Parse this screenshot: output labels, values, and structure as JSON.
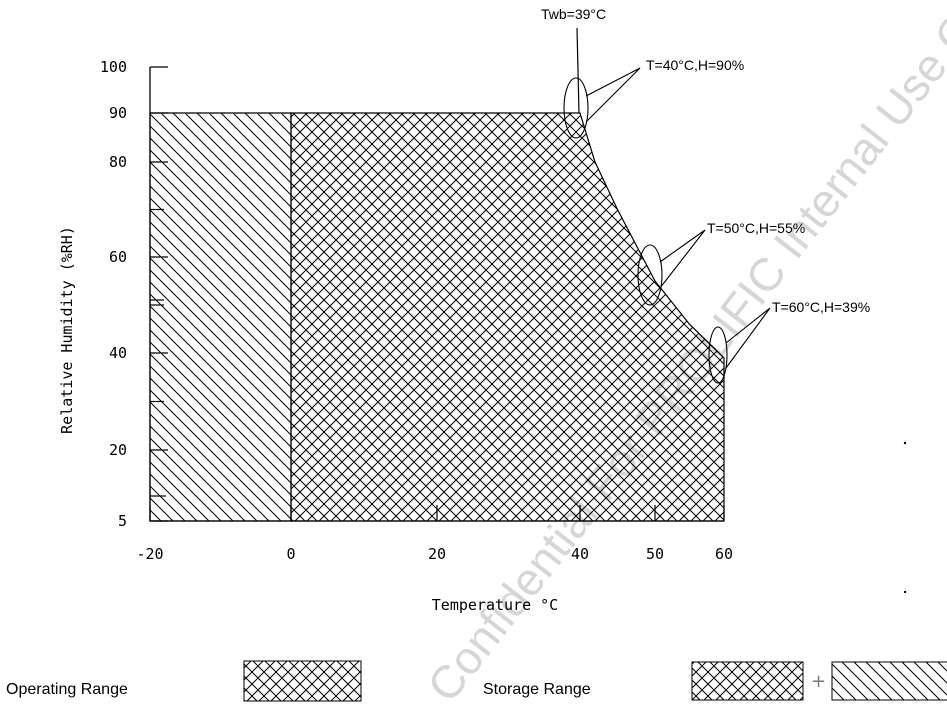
{
  "chart_data": {
    "type": "area",
    "xlabel": "Temperature °C",
    "ylabel": "Relative Humidity (%RH)",
    "xlim": [
      -20,
      60
    ],
    "ylim": [
      5,
      100
    ],
    "x_ticks": [
      -20,
      0,
      20,
      40,
      50,
      60
    ],
    "y_ticks": [
      5,
      20,
      40,
      60,
      80,
      90,
      100
    ],
    "series": [
      {
        "name": "Operating Range",
        "pattern": "crosshatch",
        "points": [
          [
            0,
            5
          ],
          [
            0,
            90
          ],
          [
            39,
            90
          ],
          [
            40,
            90
          ],
          [
            42,
            80
          ],
          [
            45,
            70
          ],
          [
            50,
            55
          ],
          [
            55,
            46
          ],
          [
            60,
            39
          ],
          [
            60,
            5
          ]
        ]
      },
      {
        "name": "Storage Range",
        "pattern": "diagonal",
        "points": [
          [
            -20,
            5
          ],
          [
            -20,
            90
          ],
          [
            0,
            90
          ],
          [
            0,
            5
          ]
        ]
      }
    ],
    "annotations": [
      {
        "text": "Twb=39°C",
        "x": 39,
        "y": 100
      },
      {
        "text": "T=40°C,H=90%",
        "x": 40,
        "y": 90
      },
      {
        "text": "T=50°C,H=55%",
        "x": 50,
        "y": 55
      },
      {
        "text": "T=60°C,H=39%",
        "x": 60,
        "y": 39
      }
    ],
    "legend": {
      "operating_label": "Operating Range",
      "storage_label": "Storage Range",
      "plus": "+"
    },
    "watermark": "Confidential For PROLIFIC Internal Use Only"
  }
}
